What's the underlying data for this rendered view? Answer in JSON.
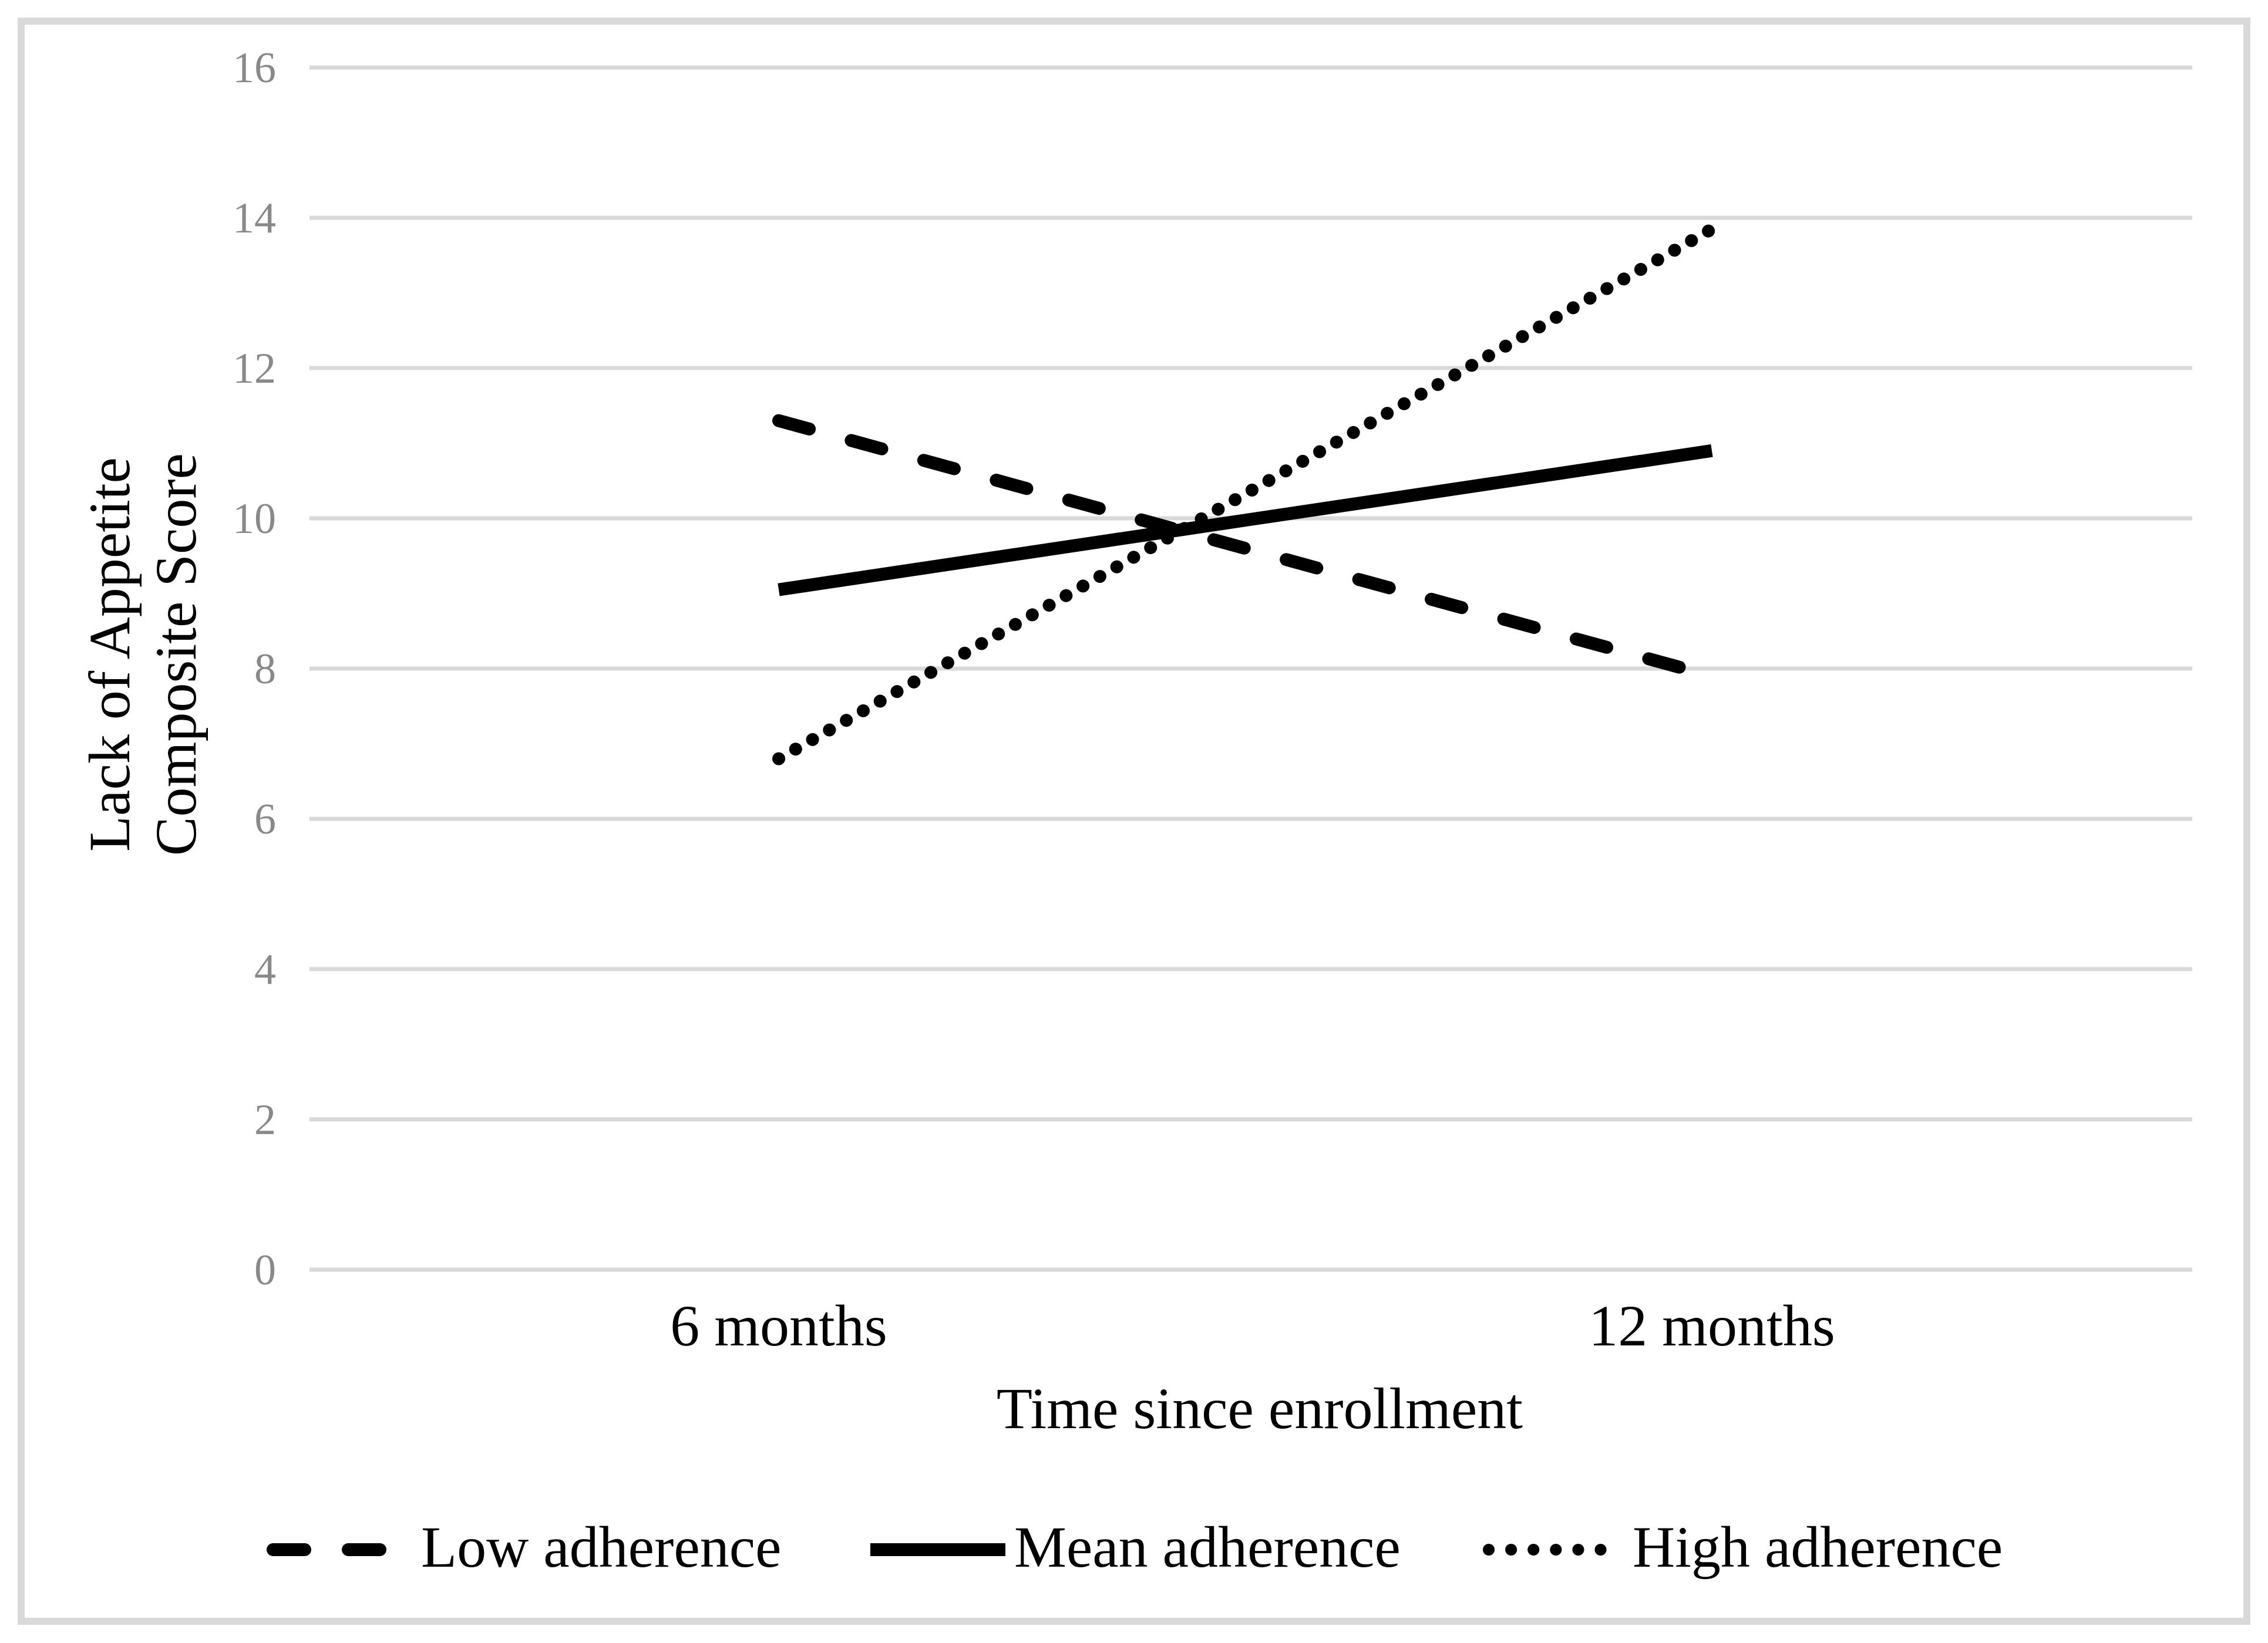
{
  "figure": {
    "background": "#ffffff",
    "border_color": "#d9d9d9"
  },
  "chart_data": {
    "type": "line",
    "xlabel": "Time since enrollment",
    "ylabel": "Lack of Appetite Composite Score",
    "ylabel_lines": [
      "Lack of Appetite",
      "Composite Score"
    ],
    "categories": [
      "6 months",
      "12 months"
    ],
    "series": [
      {
        "name": "Low adherence",
        "style": "dashed",
        "values": [
          11.3,
          7.9
        ]
      },
      {
        "name": "Mean adherence",
        "style": "solid",
        "values": [
          9.05,
          10.9
        ]
      },
      {
        "name": "High adherence",
        "style": "dotted",
        "values": [
          6.8,
          13.85
        ]
      }
    ],
    "ylim": [
      0,
      16
    ],
    "ytick_step": 2,
    "yticks": [
      0,
      2,
      4,
      6,
      8,
      10,
      12,
      14,
      16
    ],
    "grid": "horizontal",
    "legend_position": "bottom",
    "line_color": "#000000",
    "grid_color": "#d9d9d9",
    "tick_label_color": "#898989"
  }
}
